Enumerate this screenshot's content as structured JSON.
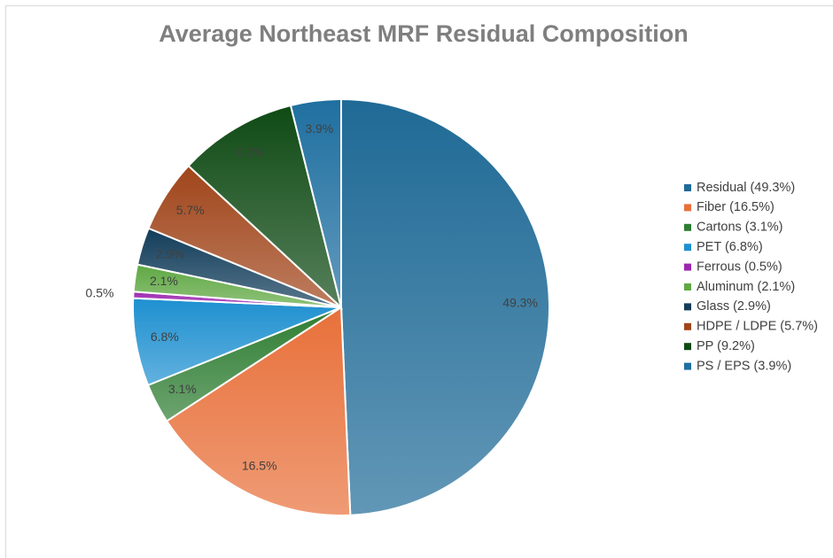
{
  "chart_data": {
    "type": "pie",
    "title": "Average Northeast MRF Residual Composition",
    "categories": [
      "Residual (49.3%)",
      "Fiber (16.5%)",
      "Cartons (3.1%)",
      "PET (6.8%)",
      "Ferrous (0.5%)",
      "Aluminum (2.1%)",
      "Glass (2.9%)",
      "HDPE / LDPE (5.7%)",
      "PP (9.2%)",
      "PS / EPS (3.9%)"
    ],
    "values": [
      49.3,
      16.5,
      3.1,
      6.8,
      0.5,
      2.1,
      2.9,
      5.7,
      9.2,
      3.9
    ],
    "value_labels": [
      "49.3%",
      "16.5%",
      "3.1%",
      "6.8%",
      "0.5%",
      "2.1%",
      "2.9%",
      "5.7%",
      "9.2%",
      "3.9%"
    ],
    "colors": [
      "#1f6a96",
      "#e8703a",
      "#2e7d32",
      "#1e90d0",
      "#9c27b0",
      "#5fa843",
      "#123d5a",
      "#a0451a",
      "#0f4a14",
      "#1e6fa0"
    ]
  }
}
